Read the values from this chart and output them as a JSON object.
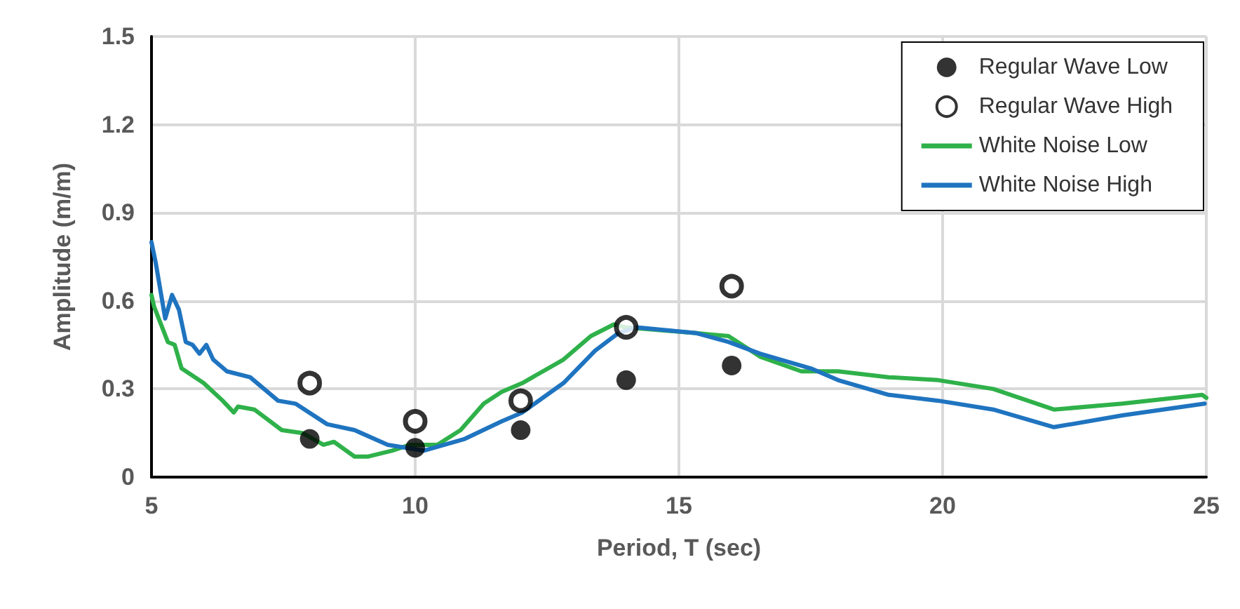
{
  "chart_data": {
    "type": "line",
    "xlabel": "Period, T (sec)",
    "ylabel": "Amplitude (m/m)",
    "xlim": [
      5,
      25
    ],
    "xticks": [
      5,
      10,
      15,
      20,
      25
    ],
    "ylim": [
      0,
      1.5
    ],
    "yticks": [
      {
        "value": 0,
        "label": "0"
      },
      {
        "value": 0.3,
        "label": "0.3"
      },
      {
        "value": 0.6,
        "label": "0.6"
      },
      {
        "value": 0.9,
        "label": "0.9"
      },
      {
        "value": 1.2,
        "label": "1.2"
      },
      {
        "value": 1.5,
        "label": "1.5"
      }
    ],
    "grid": true,
    "legend": "top right",
    "series": [
      {
        "name": "Regular Wave Low",
        "type": "scatter",
        "marker": "circle",
        "color": "#000000",
        "x": [
          8,
          10,
          12,
          14,
          16
        ],
        "values": [
          0.13,
          0.1,
          0.16,
          0.33,
          0.38
        ]
      },
      {
        "name": "Regular Wave High",
        "type": "scatter",
        "marker": "circle",
        "color": "#000000",
        "x": [
          8,
          10,
          12,
          14,
          16
        ],
        "values": [
          0.32,
          0.19,
          0.26,
          0.51,
          0.65
        ]
      },
      {
        "name": "White Noise Low",
        "color": "#2fb14a",
        "x": [
          5,
          5.05,
          5.31,
          5.44,
          5.57,
          5.99,
          6.35,
          6.56,
          6.64,
          6.95,
          7.47,
          7.86,
          8.26,
          8.46,
          8.85,
          9.11,
          9.56,
          9.9,
          10.42,
          10.86,
          11.3,
          11.64,
          12.03,
          12.81,
          13.33,
          13.77,
          13.98,
          15.33,
          15.94,
          16.54,
          17.32,
          18.02,
          18.98,
          19.92,
          20.96,
          22.11,
          23.41,
          24.92,
          25
        ],
        "values": [
          0.62,
          0.58,
          0.46,
          0.45,
          0.37,
          0.32,
          0.26,
          0.22,
          0.24,
          0.23,
          0.16,
          0.15,
          0.11,
          0.12,
          0.07,
          0.07,
          0.09,
          0.11,
          0.11,
          0.16,
          0.25,
          0.29,
          0.32,
          0.4,
          0.48,
          0.52,
          0.51,
          0.49,
          0.48,
          0.41,
          0.36,
          0.36,
          0.34,
          0.33,
          0.3,
          0.23,
          0.25,
          0.28,
          0.27
        ]
      },
      {
        "name": "White Noise High",
        "color": "#1f74c0",
        "x": [
          5,
          5.08,
          5.26,
          5.39,
          5.52,
          5.65,
          5.78,
          5.91,
          6.04,
          6.17,
          6.43,
          6.87,
          7.4,
          7.73,
          8.33,
          8.85,
          9.48,
          10.16,
          10.94,
          11.64,
          12.03,
          12.81,
          13.41,
          13.85,
          14.19,
          15.33,
          15.94,
          16.54,
          17.5,
          18.02,
          18.98,
          19.92,
          20.96,
          22.11,
          23.41,
          24.97
        ],
        "values": [
          0.8,
          0.73,
          0.54,
          0.62,
          0.57,
          0.46,
          0.45,
          0.42,
          0.45,
          0.4,
          0.36,
          0.34,
          0.26,
          0.25,
          0.18,
          0.16,
          0.11,
          0.09,
          0.13,
          0.19,
          0.22,
          0.32,
          0.43,
          0.49,
          0.51,
          0.49,
          0.46,
          0.42,
          0.37,
          0.33,
          0.28,
          0.26,
          0.23,
          0.17,
          0.21,
          0.25
        ]
      }
    ]
  }
}
